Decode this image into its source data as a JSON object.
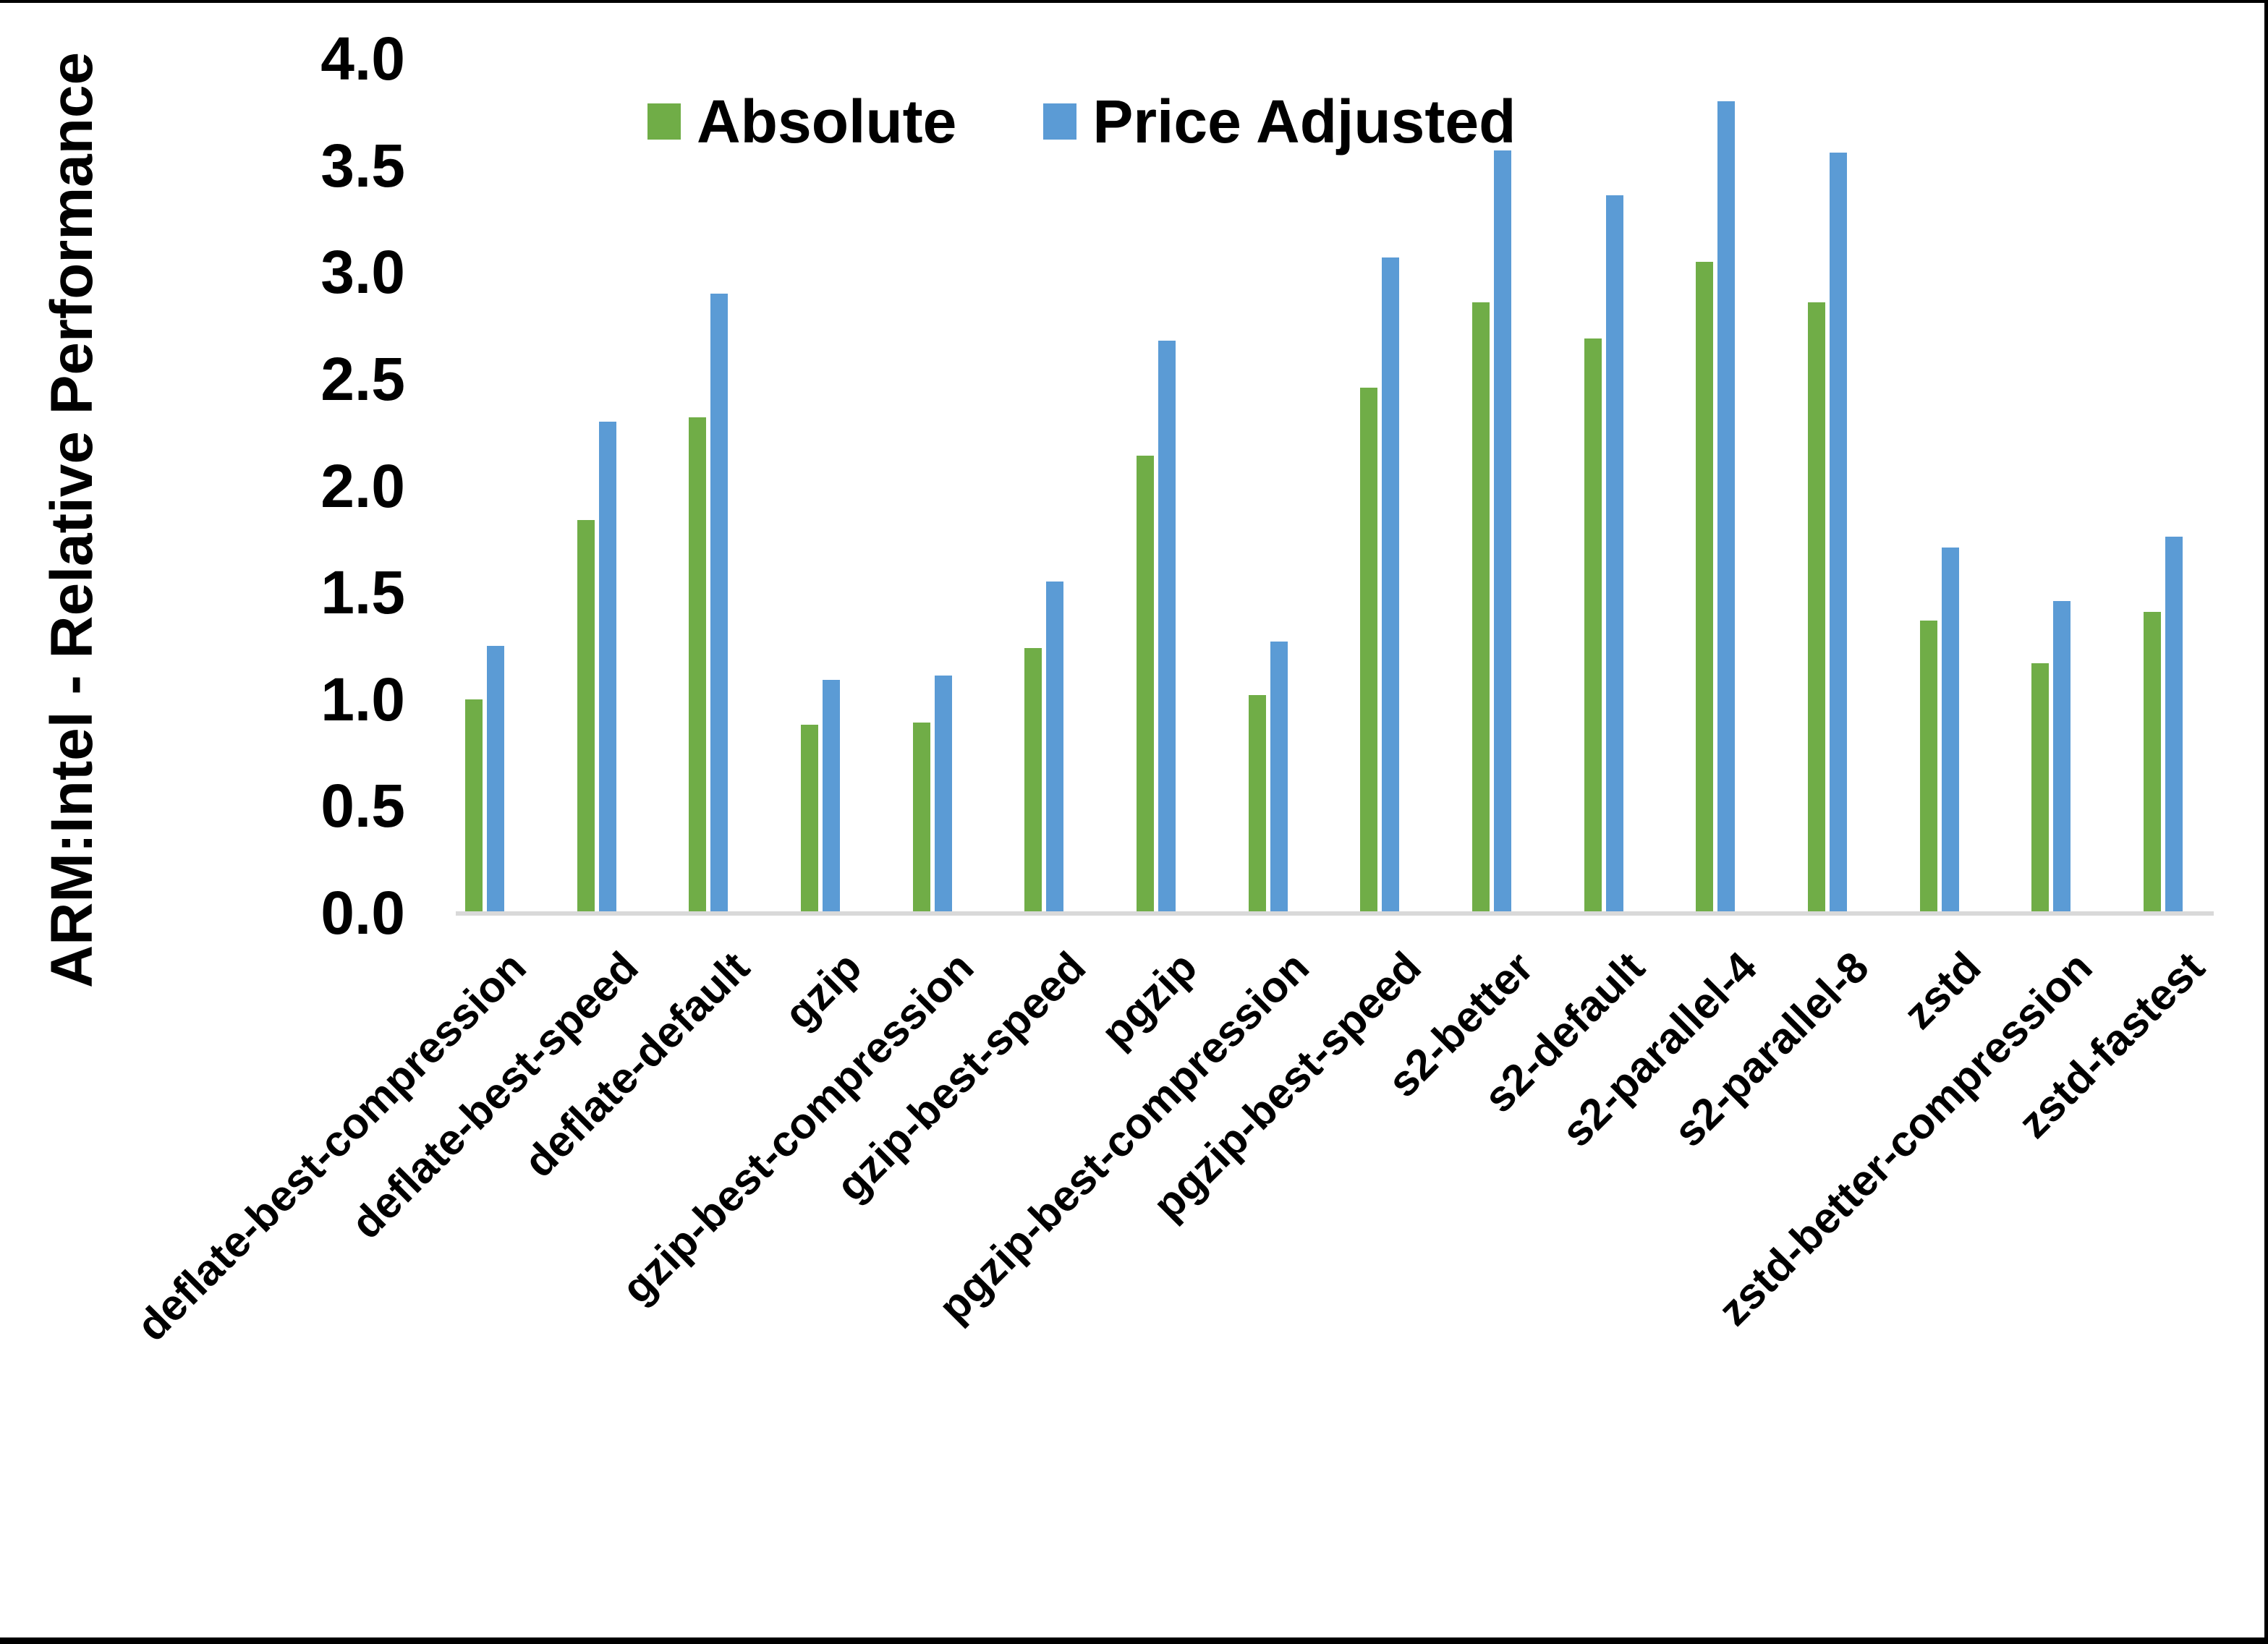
{
  "figure": {
    "ylabel": "ARM:Intel - Relative Performance",
    "background": "#ffffff",
    "axis_line_color": "#d9d9d9",
    "legend": {
      "position": "top",
      "items": [
        {
          "label": "Absolute",
          "color": "#70AD47"
        },
        {
          "label": "Price Adjusted",
          "color": "#5B9BD5"
        }
      ]
    }
  },
  "chart_data": {
    "type": "bar",
    "title": "",
    "xlabel": "",
    "ylabel": "ARM:Intel - Relative Performance",
    "ylim": [
      0.0,
      4.0
    ],
    "ytick_step": 0.5,
    "yticks": [
      "0.0",
      "0.5",
      "1.0",
      "1.5",
      "2.0",
      "2.5",
      "3.0",
      "3.5",
      "4.0"
    ],
    "grid": false,
    "legend_position": "top-center",
    "categories": [
      "deflate-best-compression",
      "deflate-best-speed",
      "deflate-default",
      "gzip",
      "gzip-best-compression",
      "gzip-best-speed",
      "pgzip",
      "pgzip-best-compression",
      "pgzip-best-speed",
      "s2-better",
      "s2-default",
      "s2-parallel-4",
      "s2-parallel-8",
      "zstd",
      "zstd-better-compression",
      "zstd-fastest"
    ],
    "series": [
      {
        "name": "Absolute",
        "color": "#70AD47",
        "values": [
          1.0,
          1.84,
          2.32,
          0.88,
          0.89,
          1.24,
          2.14,
          1.02,
          2.46,
          2.86,
          2.69,
          3.05,
          2.86,
          1.37,
          1.17,
          1.41
        ]
      },
      {
        "name": "Price Adjusted",
        "color": "#5B9BD5",
        "values": [
          1.25,
          2.3,
          2.9,
          1.09,
          1.11,
          1.55,
          2.68,
          1.27,
          3.07,
          3.57,
          3.36,
          3.8,
          3.56,
          1.71,
          1.46,
          1.76
        ]
      }
    ]
  }
}
